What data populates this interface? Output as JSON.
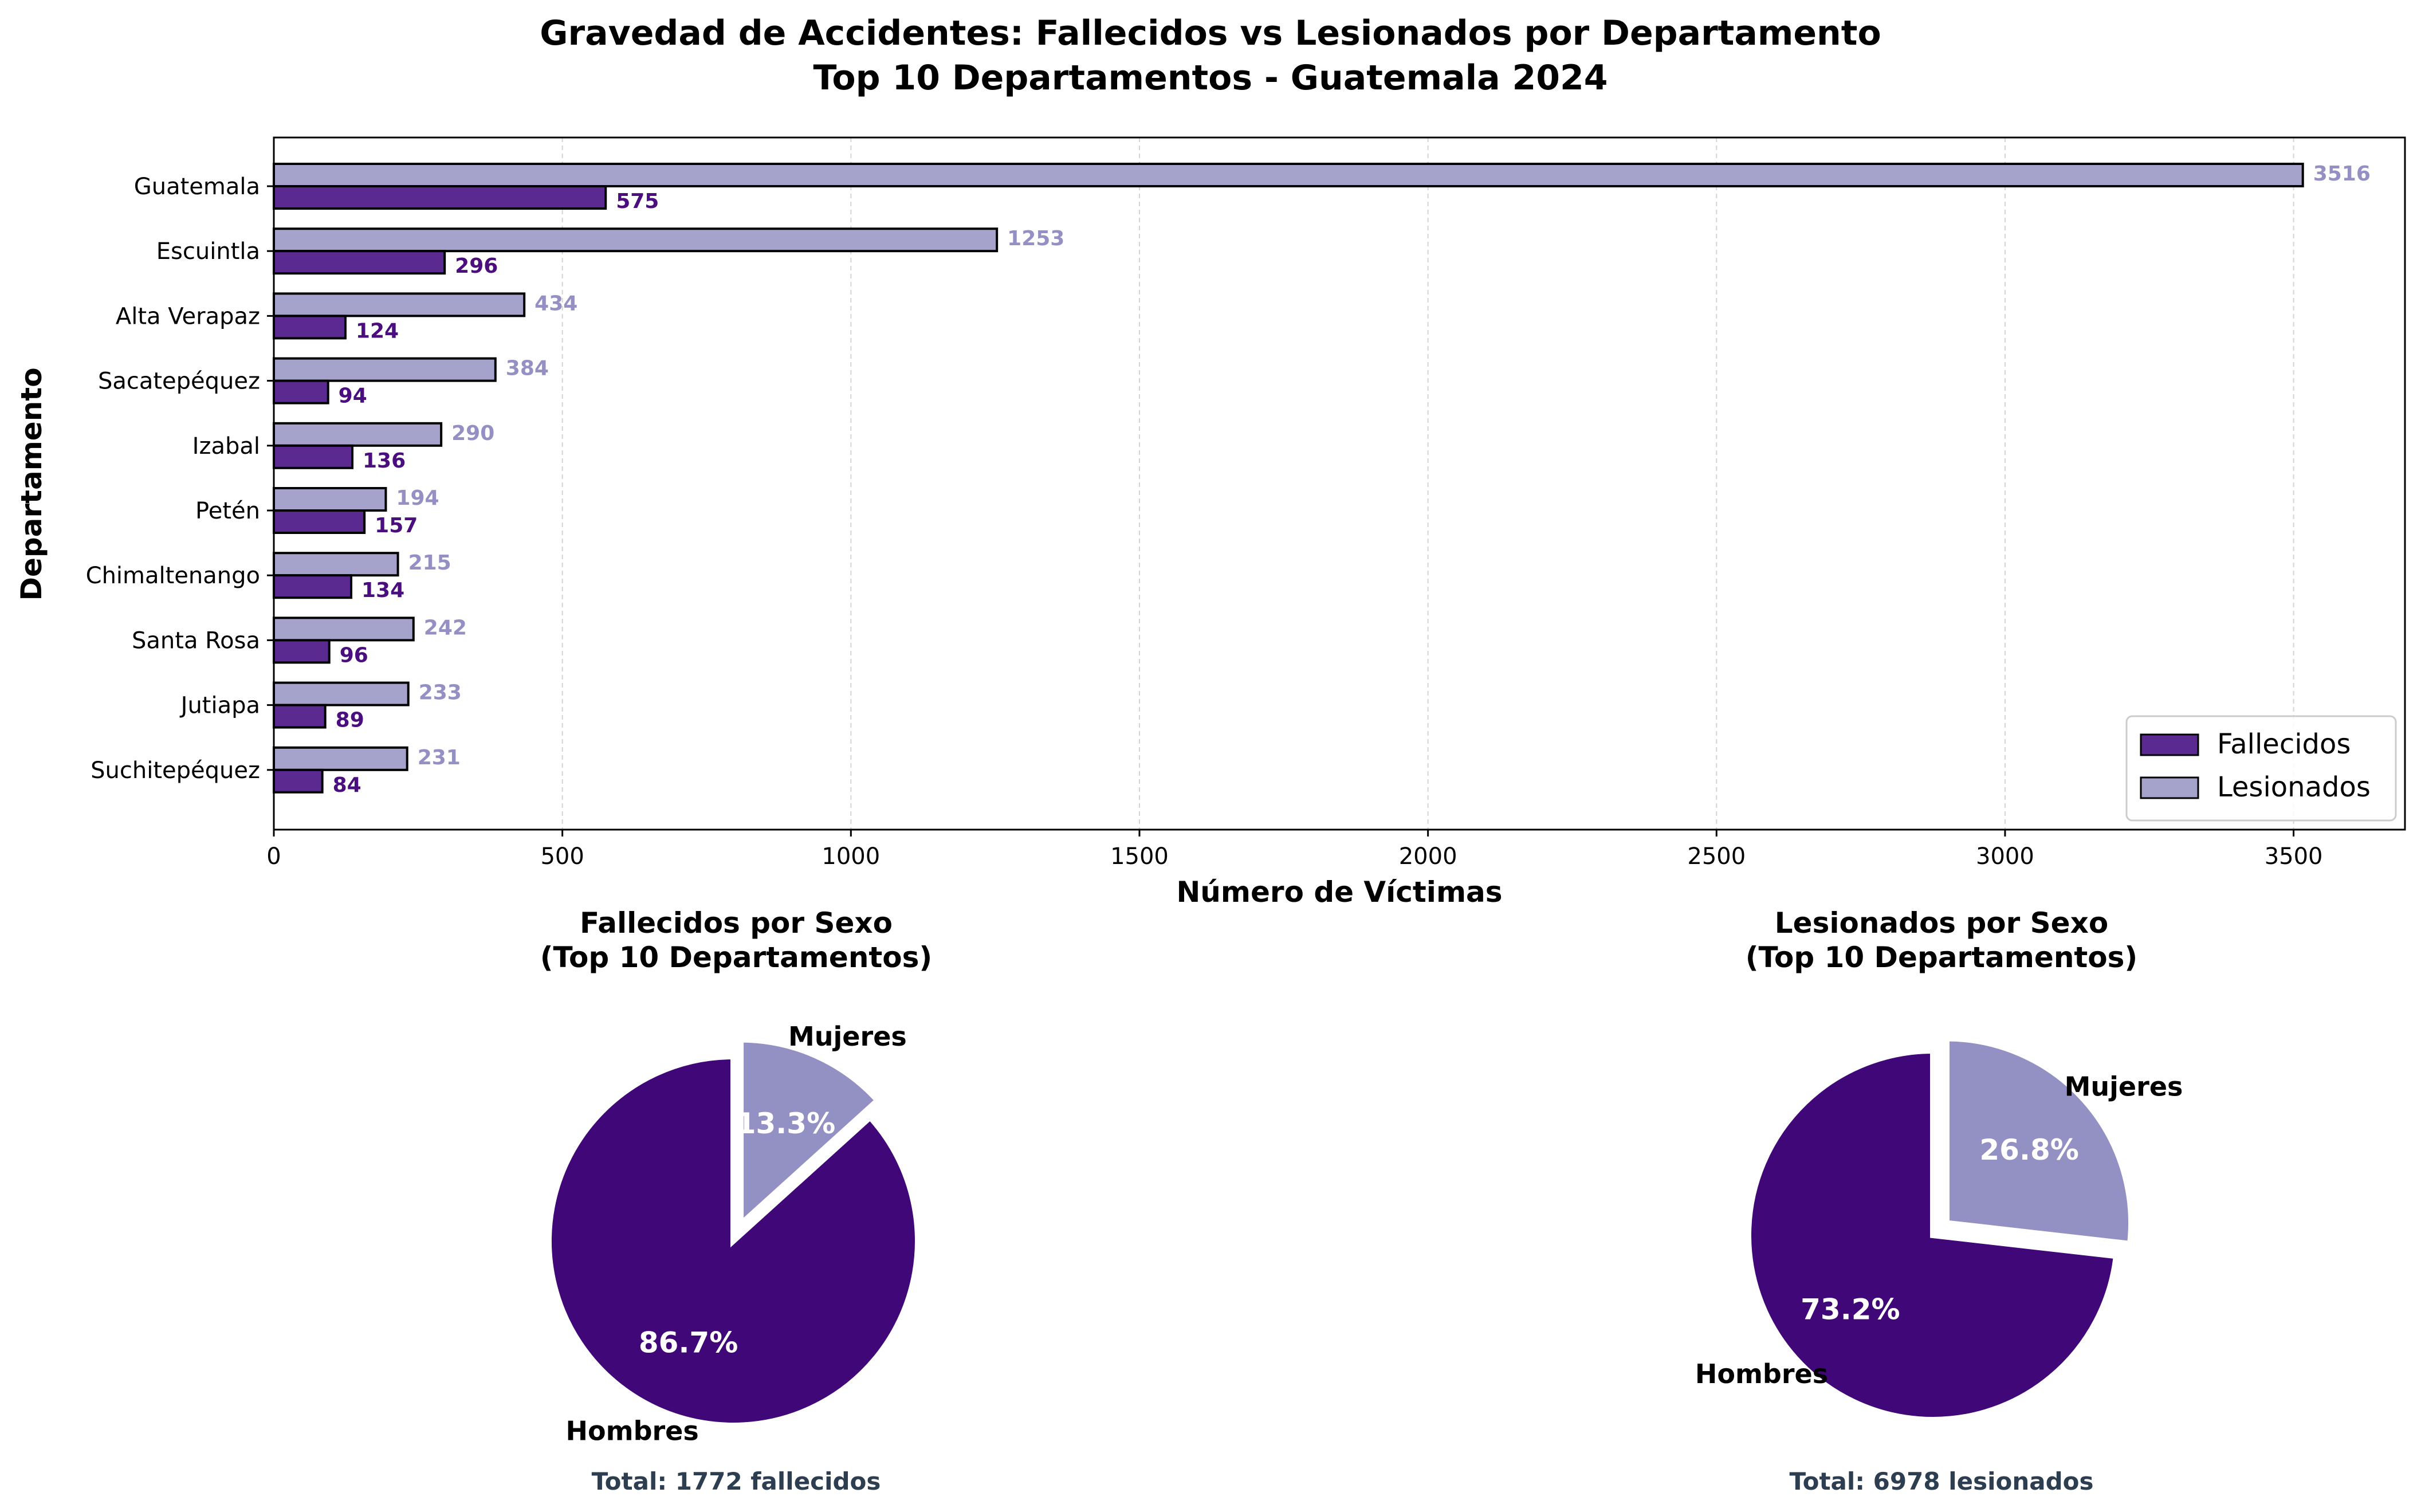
{
  "figure": {
    "title_line1": "Gravedad de Accidentes: Fallecidos vs Lesionados por Departamento",
    "title_line2": "Top 10 Departamentos - Guatemala 2024"
  },
  "colors": {
    "fallecidos": "#5b2a90",
    "lesionados": "#a5a3cc",
    "fallecidos_label": "#4a0e7e",
    "lesionados_label": "#9490c4",
    "pie_hombres": "#400779",
    "pie_mujeres": "#9390c3",
    "total_text": "#2c3e50"
  },
  "chart_data": [
    {
      "type": "bar",
      "orientation": "horizontal",
      "categories": [
        "Guatemala",
        "Escuintla",
        "Alta Verapaz",
        "Sacatepéquez",
        "Izabal",
        "Petén",
        "Chimaltenango",
        "Santa Rosa",
        "Jutiapa",
        "Suchitepéquez"
      ],
      "series": [
        {
          "name": "Fallecidos",
          "values": [
            575,
            296,
            124,
            94,
            136,
            157,
            134,
            96,
            89,
            84
          ]
        },
        {
          "name": "Lesionados",
          "values": [
            3516,
            1253,
            434,
            384,
            290,
            194,
            215,
            242,
            233,
            231
          ]
        }
      ],
      "xlabel": "Número de Víctimas",
      "ylabel": "Departamento",
      "xlim": [
        0,
        3693
      ],
      "xticks": [
        0,
        500,
        1000,
        1500,
        2000,
        2500,
        3000,
        3500
      ],
      "grid": "x, dashed",
      "legend": "lower-right"
    },
    {
      "type": "pie",
      "title_line1": "Fallecidos por Sexo",
      "title_line2": "(Top 10 Departamentos)",
      "labels": [
        "Hombres",
        "Mujeres"
      ],
      "values": [
        86.7,
        13.3
      ],
      "value_labels": [
        "86.7%",
        "13.3%"
      ],
      "explode": "Mujeres",
      "total_text": "Total: 1772 fallecidos"
    },
    {
      "type": "pie",
      "title_line1": "Lesionados por Sexo",
      "title_line2": "(Top 10 Departamentos)",
      "labels": [
        "Hombres",
        "Mujeres"
      ],
      "values": [
        73.2,
        26.8
      ],
      "value_labels": [
        "73.2%",
        "26.8%"
      ],
      "explode": "Mujeres",
      "total_text": "Total: 6978 lesionados"
    }
  ]
}
